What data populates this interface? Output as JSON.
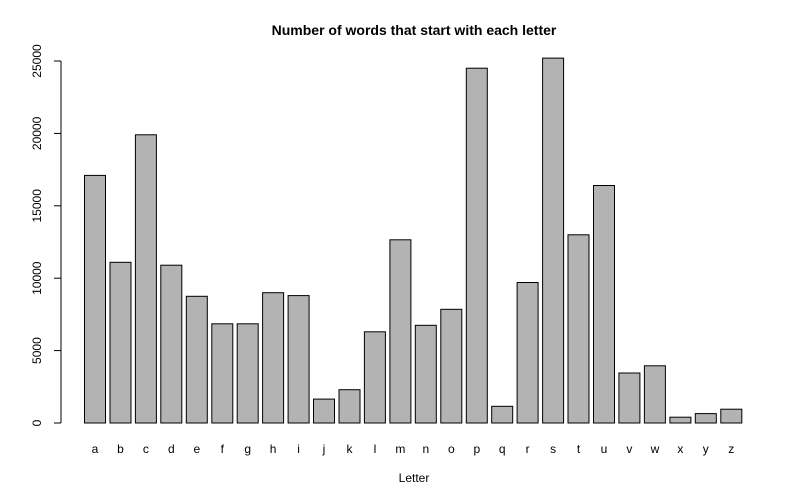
{
  "chart_data": {
    "type": "bar",
    "title": "Number of words that start with each letter",
    "xlabel": "Letter",
    "ylabel": "",
    "categories": [
      "a",
      "b",
      "c",
      "d",
      "e",
      "f",
      "g",
      "h",
      "i",
      "j",
      "k",
      "l",
      "m",
      "n",
      "o",
      "p",
      "q",
      "r",
      "s",
      "t",
      "u",
      "v",
      "w",
      "x",
      "y",
      "z"
    ],
    "values": [
      17100,
      11100,
      19900,
      10900,
      8750,
      6850,
      6850,
      9000,
      8800,
      1650,
      2300,
      6300,
      12650,
      6750,
      7850,
      24500,
      1150,
      9700,
      25200,
      13000,
      16400,
      3450,
      3950,
      400,
      650,
      950
    ],
    "yticks": [
      0,
      5000,
      10000,
      15000,
      20000,
      25000
    ],
    "ylim": [
      0,
      25000
    ],
    "bar_color": "#b3b3b3",
    "grid": false,
    "legend": "none"
  }
}
